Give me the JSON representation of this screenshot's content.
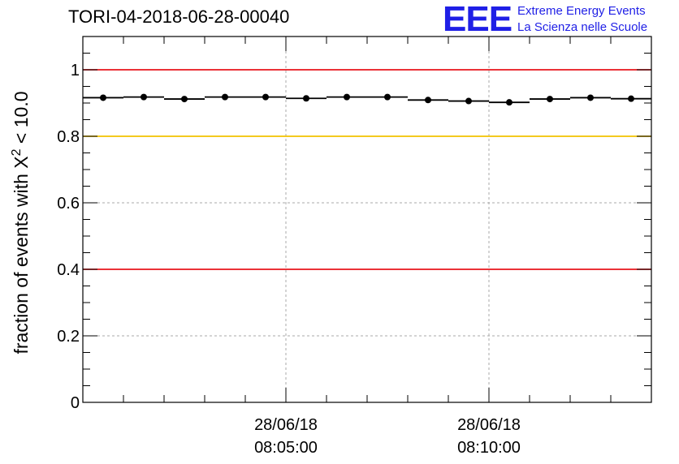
{
  "chart_data": {
    "type": "scatter",
    "title": "TORI-04-2018-06-28-00040",
    "ylabel_prefix": "fraction of events with ",
    "ylabel_symbol": "X",
    "ylabel_superscript": "2",
    "ylabel_suffix": " < 10.0",
    "ylim": [
      0,
      1.1
    ],
    "yticks": [
      0,
      0.2,
      0.4,
      0.6,
      0.8,
      1
    ],
    "ytick_labels": [
      "0",
      "0.2",
      "0.4",
      "0.6",
      "0.8",
      "1"
    ],
    "x_unit": "minutes after 28/06/18 08:00:00",
    "xlim": [
      0,
      14
    ],
    "xticks": [
      5,
      10
    ],
    "xtick_labels": [
      {
        "date": "28/06/18",
        "time": "08:05:00"
      },
      {
        "date": "28/06/18",
        "time": "08:10:00"
      }
    ],
    "grid": true,
    "reference_lines": [
      {
        "y": 1.0,
        "color": "#e8141b"
      },
      {
        "y": 0.8,
        "color": "#f2c200"
      },
      {
        "y": 0.4,
        "color": "#e8141b"
      }
    ],
    "bin_width": 1,
    "series": [
      {
        "x": [
          0.5,
          1.5,
          2.5,
          3.5,
          4.5,
          5.5,
          6.5,
          7.5,
          8.5,
          9.5,
          10.5,
          11.5,
          12.5,
          13.5
        ],
        "values": [
          0.916,
          0.918,
          0.912,
          0.918,
          0.918,
          0.914,
          0.918,
          0.918,
          0.909,
          0.906,
          0.902,
          0.912,
          0.916,
          0.913
        ],
        "color": "#000000"
      }
    ]
  },
  "logo": {
    "letters": "EEE",
    "line1": "Extreme Energy Events",
    "line2": "La Scienza nelle Scuole",
    "color": "#1f1fe6"
  }
}
